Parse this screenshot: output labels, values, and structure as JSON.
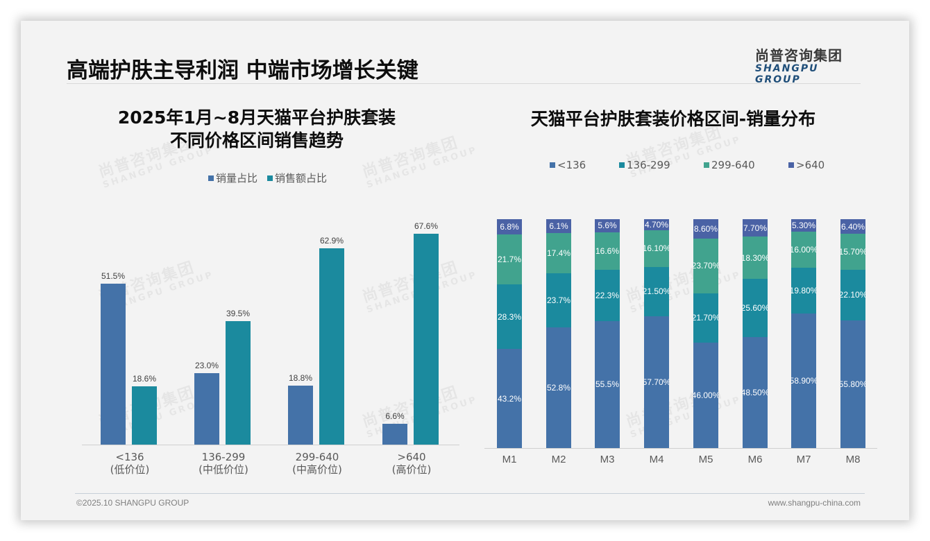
{
  "header": {
    "title": "高端护肤主导利润 中端市场增长关键",
    "logo_cn": "尚普咨询集团",
    "logo_en": "SHANGPU GROUP"
  },
  "watermark": {
    "cn": "尚普咨询集团",
    "en": "SHANGPU GROUP"
  },
  "colors": {
    "sales_volume": "#4472a8",
    "sales_amount": "#1b8a9e",
    "lt136": "#4472a8",
    "r136_299": "#1b8a9e",
    "r299_640": "#41a38e",
    "gt640": "#4a62a5"
  },
  "chart_data": [
    {
      "type": "bar",
      "title": "2025年1月~8月天猫平台护肤套装不同价格区间销售趋势",
      "title_line1": "2025年1月~8月天猫平台护肤套装",
      "title_line2": "不同价格区间销售趋势",
      "categories": [
        "<136 (低价位)",
        "136-299 (中低价位)",
        "299-640 (中高价位)",
        ">640 (高价位)"
      ],
      "category_lines": [
        [
          "<136",
          "(低价位)"
        ],
        [
          "136-299",
          "(中低价位)"
        ],
        [
          "299-640",
          "(中高价位)"
        ],
        [
          ">640",
          "(高价位)"
        ]
      ],
      "series": [
        {
          "name": "销量占比",
          "values": [
            51.5,
            23.0,
            18.8,
            6.6
          ],
          "labels": [
            "51.5%",
            "23.0%",
            "18.8%",
            "6.6%"
          ]
        },
        {
          "name": "销售额占比",
          "values": [
            18.6,
            39.5,
            62.9,
            67.6
          ],
          "labels": [
            "18.6%",
            "39.5%",
            "62.9%",
            "67.6%"
          ]
        }
      ],
      "xlabel": "",
      "ylabel": "",
      "legend_position": "top",
      "grid": false
    },
    {
      "type": "bar",
      "stacked": true,
      "title": "天猫平台护肤套装价格区间-销量分布",
      "categories": [
        "M1",
        "M2",
        "M3",
        "M4",
        "M5",
        "M6",
        "M7",
        "M8"
      ],
      "series": [
        {
          "name": "<136",
          "values": [
            43.2,
            52.8,
            55.5,
            57.7,
            46.0,
            48.5,
            58.9,
            55.8
          ],
          "labels": [
            "43.2%",
            "52.8%",
            "55.5%",
            "57.70%",
            "46.00%",
            "48.50%",
            "58.90%",
            "55.80%"
          ]
        },
        {
          "name": "136-299",
          "values": [
            28.3,
            23.7,
            22.3,
            21.5,
            21.7,
            25.6,
            19.8,
            22.1
          ],
          "labels": [
            "28.3%",
            "23.7%",
            "22.3%",
            "21.50%",
            "21.70%",
            "25.60%",
            "19.80%",
            "22.10%"
          ]
        },
        {
          "name": "299-640",
          "values": [
            21.7,
            17.4,
            16.6,
            16.1,
            23.7,
            18.3,
            16.0,
            15.7
          ],
          "labels": [
            "21.7%",
            "17.4%",
            "16.6%",
            "16.10%",
            "23.70%",
            "18.30%",
            "16.00%",
            "15.70%"
          ]
        },
        {
          "name": ">640",
          "values": [
            6.8,
            6.1,
            5.6,
            4.7,
            8.6,
            7.7,
            5.3,
            6.4
          ],
          "labels": [
            "6.8%",
            "6.1%",
            "5.6%",
            "4.70%",
            "8.60%",
            "7.70%",
            "5.30%",
            "6.40%"
          ]
        }
      ],
      "xlabel": "",
      "ylabel": "",
      "ylim": [
        0,
        100
      ],
      "legend_position": "top",
      "grid": false
    }
  ],
  "footer": {
    "copyright": "©2025.10 SHANGPU GROUP",
    "website": "www.shangpu-china.com"
  }
}
